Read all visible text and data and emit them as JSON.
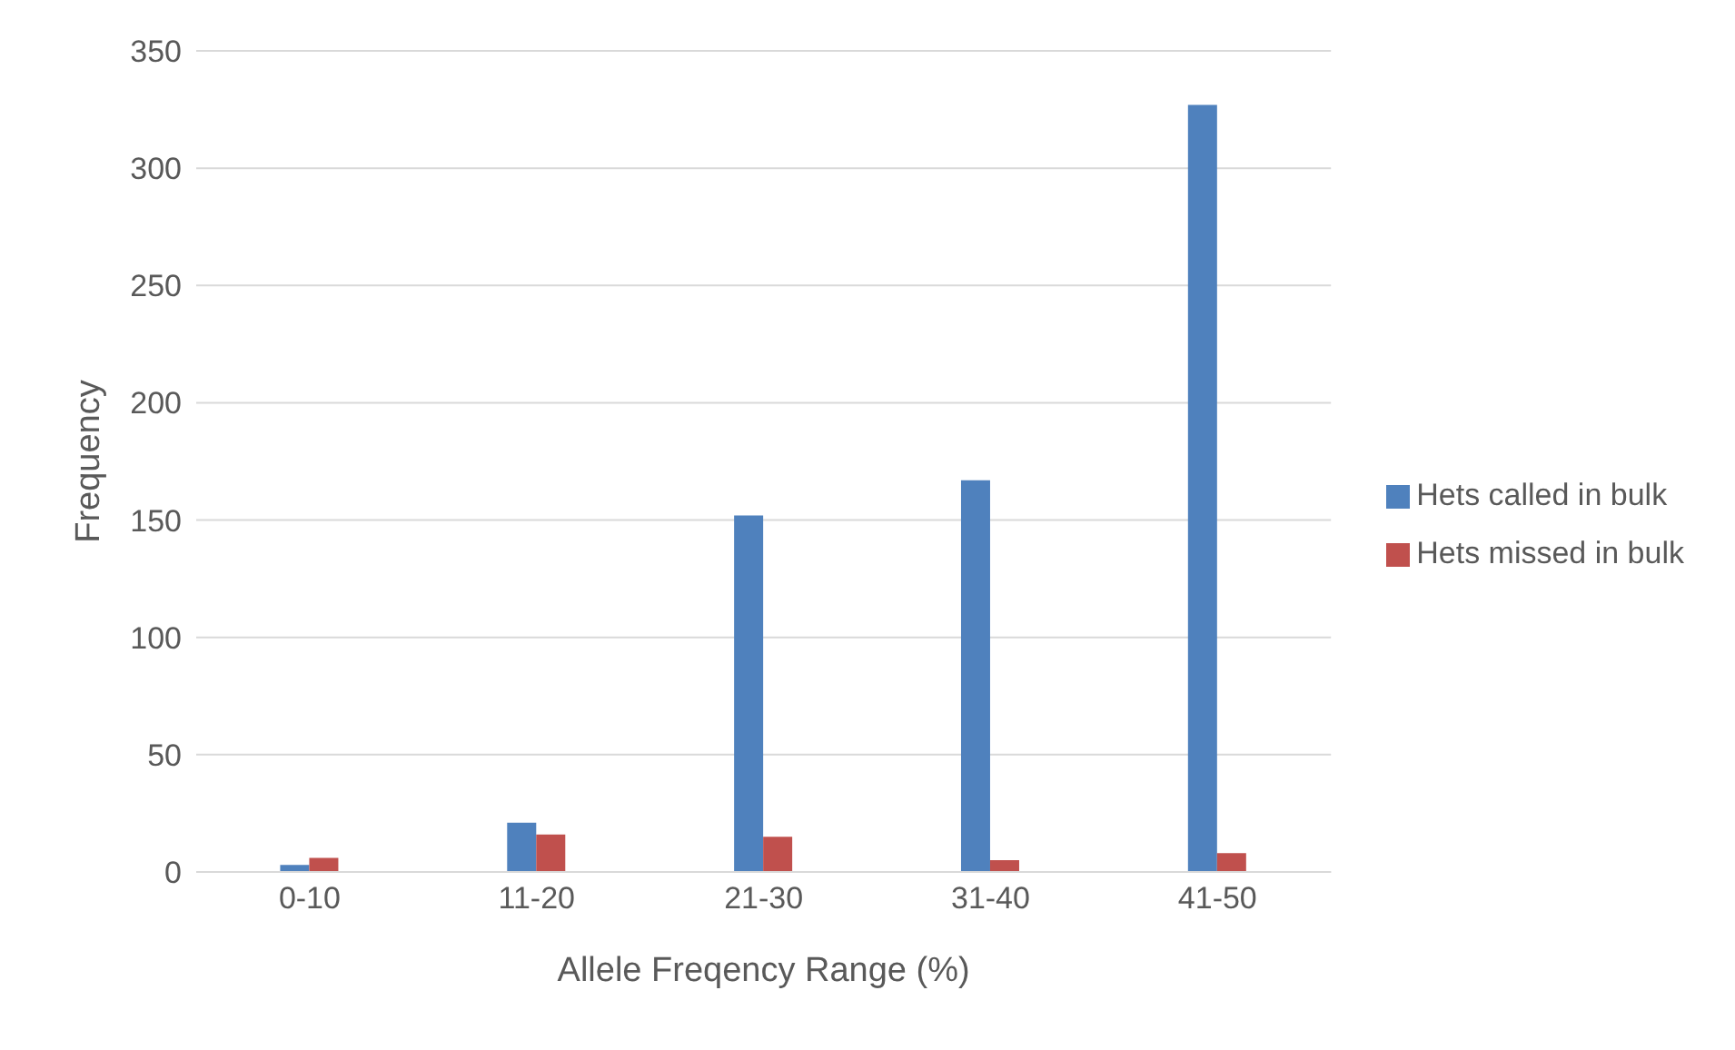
{
  "chart_data": {
    "type": "bar",
    "xlabel": "Allele Freqency Range (%)",
    "ylabel": "Frequency",
    "categories": [
      "0-10",
      "11-20",
      "21-30",
      "31-40",
      "41-50"
    ],
    "series": [
      {
        "name": "Hets called in bulk",
        "color": "#4f81bd",
        "values": [
          3,
          21,
          152,
          167,
          327
        ]
      },
      {
        "name": "Hets missed in bulk",
        "color": "#c0504d",
        "values": [
          6,
          16,
          15,
          5,
          8
        ]
      }
    ],
    "ylim": [
      0,
      350
    ],
    "yticks": [
      0,
      50,
      100,
      150,
      200,
      250,
      300,
      350
    ],
    "grid": "y",
    "legend": "right"
  }
}
